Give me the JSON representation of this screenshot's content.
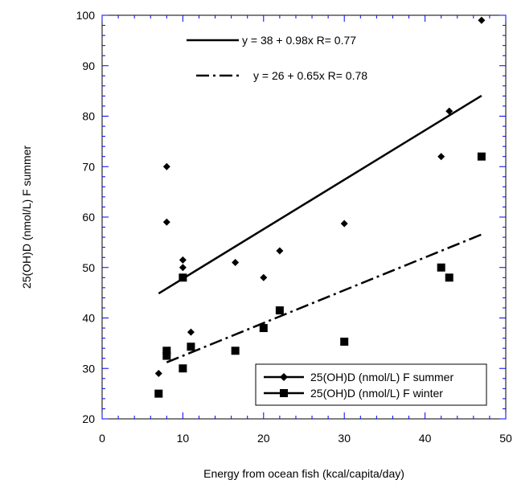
{
  "chart_data": {
    "type": "scatter",
    "title": "",
    "xlabel": "Energy from ocean fish (kcal/capita/day)",
    "ylabel": "25(OH)D (nmol/L) F summer",
    "xlim": [
      0,
      50
    ],
    "ylim": [
      20,
      100
    ],
    "x_ticks": [
      "0",
      "10",
      "20",
      "30",
      "40",
      "50"
    ],
    "y_ticks": [
      "20",
      "30",
      "40",
      "50",
      "60",
      "70",
      "80",
      "90",
      "100"
    ],
    "grid": false,
    "legend_position": "bottom-right",
    "series": [
      {
        "name": "25(OH)D (nmol/L) F summer",
        "marker": "diamond",
        "color": "#000000",
        "points": [
          {
            "x": 7,
            "y": 29
          },
          {
            "x": 8,
            "y": 70
          },
          {
            "x": 8,
            "y": 59
          },
          {
            "x": 10,
            "y": 51.5
          },
          {
            "x": 10,
            "y": 50
          },
          {
            "x": 11,
            "y": 37.2
          },
          {
            "x": 16.5,
            "y": 51
          },
          {
            "x": 20,
            "y": 48
          },
          {
            "x": 22,
            "y": 53.3
          },
          {
            "x": 30,
            "y": 58.7
          },
          {
            "x": 42,
            "y": 72
          },
          {
            "x": 43,
            "y": 81
          },
          {
            "x": 47,
            "y": 99
          }
        ],
        "fit": {
          "intercept": 38,
          "slope": 0.98,
          "x_range": [
            7,
            47
          ],
          "style": "solid"
        }
      },
      {
        "name": "25(OH)D (nmol/L) F winter",
        "marker": "square",
        "color": "#000000",
        "points": [
          {
            "x": 7,
            "y": 25
          },
          {
            "x": 8,
            "y": 33.5
          },
          {
            "x": 8,
            "y": 32.5
          },
          {
            "x": 10,
            "y": 48
          },
          {
            "x": 10,
            "y": 30
          },
          {
            "x": 11,
            "y": 34.3
          },
          {
            "x": 16.5,
            "y": 33.5
          },
          {
            "x": 20,
            "y": 38
          },
          {
            "x": 22,
            "y": 41.5
          },
          {
            "x": 30,
            "y": 35.3
          },
          {
            "x": 42,
            "y": 50
          },
          {
            "x": 43,
            "y": 48
          },
          {
            "x": 47,
            "y": 72
          }
        ],
        "fit": {
          "intercept": 26,
          "slope": 0.65,
          "x_range": [
            8,
            47
          ],
          "style": "dash-dot"
        }
      }
    ],
    "annotations": [
      {
        "text": "y = 38 + 0.98x   R= 0.77",
        "line_style": "solid"
      },
      {
        "text": "y = 26 + 0.65x   R= 0.78",
        "line_style": "dash-dot"
      }
    ]
  }
}
